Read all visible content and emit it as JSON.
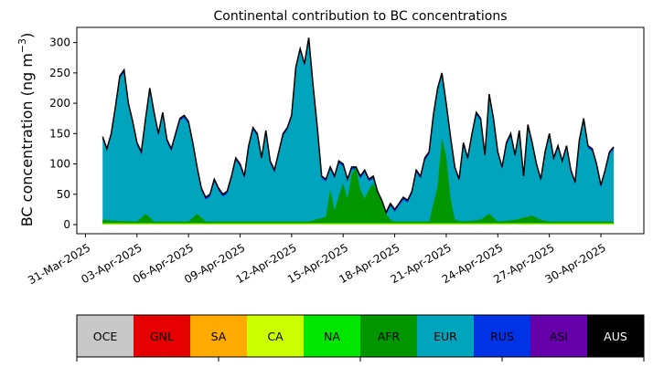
{
  "chart_data": {
    "type": "area",
    "title": "Continental contribution to BC concentrations",
    "ylabel_main": "BC concentration (ng m",
    "ylabel_sup": "−3",
    "ylabel_close": ")",
    "xlabel": "",
    "ylim": [
      -15,
      325
    ],
    "yticks": [
      0,
      50,
      100,
      150,
      200,
      250,
      300
    ],
    "xlim": [
      "2025-03-30T12:00",
      "2025-05-02T12:00"
    ],
    "xticks": [
      "31-Mar-2025",
      "03-Apr-2025",
      "06-Apr-2025",
      "09-Apr-2025",
      "12-Apr-2025",
      "15-Apr-2025",
      "18-Apr-2025",
      "21-Apr-2025",
      "24-Apr-2025",
      "27-Apr-2025",
      "30-Apr-2025"
    ],
    "xtick_dates": [
      "2025-03-31",
      "2025-04-03",
      "2025-04-06",
      "2025-04-09",
      "2025-04-12",
      "2025-04-15",
      "2025-04-18",
      "2025-04-21",
      "2025-04-24",
      "2025-04-27",
      "2025-04-30"
    ],
    "stacked": true,
    "total_line_color": "#000000",
    "series_order": [
      "OCE",
      "GNL",
      "SA",
      "CA",
      "NA",
      "AFR",
      "EUR",
      "RUS",
      "ASI",
      "AUS"
    ],
    "colors": {
      "OCE": "#c8c8c8",
      "GNL": "#e60000",
      "SA": "#ffaa00",
      "CA": "#ccff00",
      "NA": "#00e600",
      "AFR": "#009600",
      "EUR": "#00a5bd",
      "RUS": "#0032e6",
      "ASI": "#6600aa",
      "AUS": "#000000"
    },
    "legend_text_colors": {
      "OCE": "#000000",
      "GNL": "#000000",
      "SA": "#000000",
      "CA": "#000000",
      "NA": "#000000",
      "AFR": "#000000",
      "EUR": "#000000",
      "RUS": "#000000",
      "ASI": "#000000",
      "AUS": "#ffffff"
    },
    "legend_placement": "bottom colorbar",
    "grid": false,
    "total_points": [
      [
        "2025-04-01T00:00",
        145
      ],
      [
        "2025-04-01T06:00",
        125
      ],
      [
        "2025-04-01T12:00",
        150
      ],
      [
        "2025-04-01T18:00",
        195
      ],
      [
        "2025-04-02T00:00",
        245
      ],
      [
        "2025-04-02T06:00",
        255
      ],
      [
        "2025-04-02T12:00",
        200
      ],
      [
        "2025-04-02T18:00",
        170
      ],
      [
        "2025-04-03T00:00",
        135
      ],
      [
        "2025-04-03T06:00",
        120
      ],
      [
        "2025-04-03T12:00",
        175
      ],
      [
        "2025-04-03T18:00",
        225
      ],
      [
        "2025-04-04T00:00",
        185
      ],
      [
        "2025-04-04T06:00",
        150
      ],
      [
        "2025-04-04T12:00",
        185
      ],
      [
        "2025-04-04T18:00",
        140
      ],
      [
        "2025-04-05T00:00",
        125
      ],
      [
        "2025-04-05T06:00",
        150
      ],
      [
        "2025-04-05T12:00",
        175
      ],
      [
        "2025-04-05T18:00",
        180
      ],
      [
        "2025-04-06T00:00",
        170
      ],
      [
        "2025-04-06T06:00",
        135
      ],
      [
        "2025-04-06T12:00",
        95
      ],
      [
        "2025-04-06T18:00",
        60
      ],
      [
        "2025-04-07T00:00",
        45
      ],
      [
        "2025-04-07T06:00",
        50
      ],
      [
        "2025-04-07T12:00",
        75
      ],
      [
        "2025-04-07T18:00",
        60
      ],
      [
        "2025-04-08T00:00",
        50
      ],
      [
        "2025-04-08T06:00",
        55
      ],
      [
        "2025-04-08T12:00",
        80
      ],
      [
        "2025-04-08T18:00",
        110
      ],
      [
        "2025-04-09T00:00",
        100
      ],
      [
        "2025-04-09T06:00",
        80
      ],
      [
        "2025-04-09T12:00",
        130
      ],
      [
        "2025-04-09T18:00",
        160
      ],
      [
        "2025-04-10T00:00",
        150
      ],
      [
        "2025-04-10T06:00",
        110
      ],
      [
        "2025-04-10T12:00",
        155
      ],
      [
        "2025-04-10T18:00",
        105
      ],
      [
        "2025-04-11T00:00",
        90
      ],
      [
        "2025-04-11T06:00",
        120
      ],
      [
        "2025-04-11T12:00",
        150
      ],
      [
        "2025-04-11T18:00",
        160
      ],
      [
        "2025-04-12T00:00",
        180
      ],
      [
        "2025-04-12T06:00",
        260
      ],
      [
        "2025-04-12T12:00",
        290
      ],
      [
        "2025-04-12T18:00",
        265
      ],
      [
        "2025-04-13T00:00",
        308
      ],
      [
        "2025-04-13T06:00",
        230
      ],
      [
        "2025-04-13T12:00",
        160
      ],
      [
        "2025-04-13T18:00",
        80
      ],
      [
        "2025-04-14T00:00",
        75
      ],
      [
        "2025-04-14T06:00",
        95
      ],
      [
        "2025-04-14T12:00",
        80
      ],
      [
        "2025-04-14T18:00",
        105
      ],
      [
        "2025-04-15T00:00",
        100
      ],
      [
        "2025-04-15T06:00",
        75
      ],
      [
        "2025-04-15T12:00",
        95
      ],
      [
        "2025-04-15T18:00",
        95
      ],
      [
        "2025-04-16T00:00",
        80
      ],
      [
        "2025-04-16T06:00",
        90
      ],
      [
        "2025-04-16T12:00",
        75
      ],
      [
        "2025-04-16T18:00",
        80
      ],
      [
        "2025-04-17T00:00",
        55
      ],
      [
        "2025-04-17T06:00",
        40
      ],
      [
        "2025-04-17T12:00",
        20
      ],
      [
        "2025-04-17T18:00",
        35
      ],
      [
        "2025-04-18T00:00",
        25
      ],
      [
        "2025-04-18T06:00",
        35
      ],
      [
        "2025-04-18T12:00",
        45
      ],
      [
        "2025-04-18T18:00",
        40
      ],
      [
        "2025-04-19T00:00",
        55
      ],
      [
        "2025-04-19T06:00",
        90
      ],
      [
        "2025-04-19T12:00",
        80
      ],
      [
        "2025-04-19T18:00",
        110
      ],
      [
        "2025-04-20T00:00",
        120
      ],
      [
        "2025-04-20T06:00",
        180
      ],
      [
        "2025-04-20T12:00",
        225
      ],
      [
        "2025-04-20T18:00",
        250
      ],
      [
        "2025-04-21T00:00",
        200
      ],
      [
        "2025-04-21T06:00",
        145
      ],
      [
        "2025-04-21T12:00",
        95
      ],
      [
        "2025-04-21T18:00",
        75
      ],
      [
        "2025-04-22T00:00",
        135
      ],
      [
        "2025-04-22T06:00",
        110
      ],
      [
        "2025-04-22T12:00",
        150
      ],
      [
        "2025-04-22T18:00",
        185
      ],
      [
        "2025-04-23T00:00",
        175
      ],
      [
        "2025-04-23T06:00",
        115
      ],
      [
        "2025-04-23T12:00",
        215
      ],
      [
        "2025-04-23T18:00",
        175
      ],
      [
        "2025-04-24T00:00",
        120
      ],
      [
        "2025-04-24T06:00",
        95
      ],
      [
        "2025-04-24T12:00",
        135
      ],
      [
        "2025-04-24T18:00",
        150
      ],
      [
        "2025-04-25T00:00",
        115
      ],
      [
        "2025-04-25T06:00",
        155
      ],
      [
        "2025-04-25T12:00",
        80
      ],
      [
        "2025-04-25T18:00",
        165
      ],
      [
        "2025-04-26T00:00",
        135
      ],
      [
        "2025-04-26T06:00",
        100
      ],
      [
        "2025-04-26T12:00",
        75
      ],
      [
        "2025-04-26T18:00",
        120
      ],
      [
        "2025-04-27T00:00",
        150
      ],
      [
        "2025-04-27T06:00",
        110
      ],
      [
        "2025-04-27T12:00",
        130
      ],
      [
        "2025-04-27T18:00",
        105
      ],
      [
        "2025-04-28T00:00",
        130
      ],
      [
        "2025-04-28T06:00",
        90
      ],
      [
        "2025-04-28T12:00",
        70
      ],
      [
        "2025-04-28T18:00",
        140
      ],
      [
        "2025-04-29T00:00",
        175
      ],
      [
        "2025-04-29T06:00",
        130
      ],
      [
        "2025-04-29T12:00",
        125
      ],
      [
        "2025-04-29T18:00",
        100
      ],
      [
        "2025-04-30T00:00",
        65
      ],
      [
        "2025-04-30T06:00",
        90
      ],
      [
        "2025-04-30T12:00",
        120
      ],
      [
        "2025-04-30T18:00",
        128
      ]
    ],
    "afr_points": [
      [
        "2025-04-01T00:00",
        5
      ],
      [
        "2025-04-02T00:00",
        3
      ],
      [
        "2025-04-03T00:00",
        2
      ],
      [
        "2025-04-03T12:00",
        15
      ],
      [
        "2025-04-04T00:00",
        2
      ],
      [
        "2025-04-06T00:00",
        2
      ],
      [
        "2025-04-06T12:00",
        15
      ],
      [
        "2025-04-07T00:00",
        2
      ],
      [
        "2025-04-13T00:00",
        2
      ],
      [
        "2025-04-14T00:00",
        10
      ],
      [
        "2025-04-14T06:00",
        55
      ],
      [
        "2025-04-14T12:00",
        20
      ],
      [
        "2025-04-14T18:00",
        45
      ],
      [
        "2025-04-15T00:00",
        65
      ],
      [
        "2025-04-15T06:00",
        40
      ],
      [
        "2025-04-15T12:00",
        80
      ],
      [
        "2025-04-15T18:00",
        95
      ],
      [
        "2025-04-16T00:00",
        55
      ],
      [
        "2025-04-16T06:00",
        40
      ],
      [
        "2025-04-16T12:00",
        55
      ],
      [
        "2025-04-16T18:00",
        65
      ],
      [
        "2025-04-17T00:00",
        50
      ],
      [
        "2025-04-17T06:00",
        40
      ],
      [
        "2025-04-17T12:00",
        15
      ],
      [
        "2025-04-17T18:00",
        5
      ],
      [
        "2025-04-18T00:00",
        2
      ],
      [
        "2025-04-20T00:00",
        2
      ],
      [
        "2025-04-20T12:00",
        60
      ],
      [
        "2025-04-20T18:00",
        140
      ],
      [
        "2025-04-21T00:00",
        110
      ],
      [
        "2025-04-21T06:00",
        40
      ],
      [
        "2025-04-21T12:00",
        5
      ],
      [
        "2025-04-22T00:00",
        2
      ],
      [
        "2025-04-23T00:00",
        5
      ],
      [
        "2025-04-23T12:00",
        15
      ],
      [
        "2025-04-24T00:00",
        2
      ],
      [
        "2025-04-25T00:00",
        5
      ],
      [
        "2025-04-26T00:00",
        12
      ],
      [
        "2025-04-26T12:00",
        5
      ],
      [
        "2025-04-27T00:00",
        2
      ],
      [
        "2025-04-30T18:00",
        2
      ]
    ]
  }
}
